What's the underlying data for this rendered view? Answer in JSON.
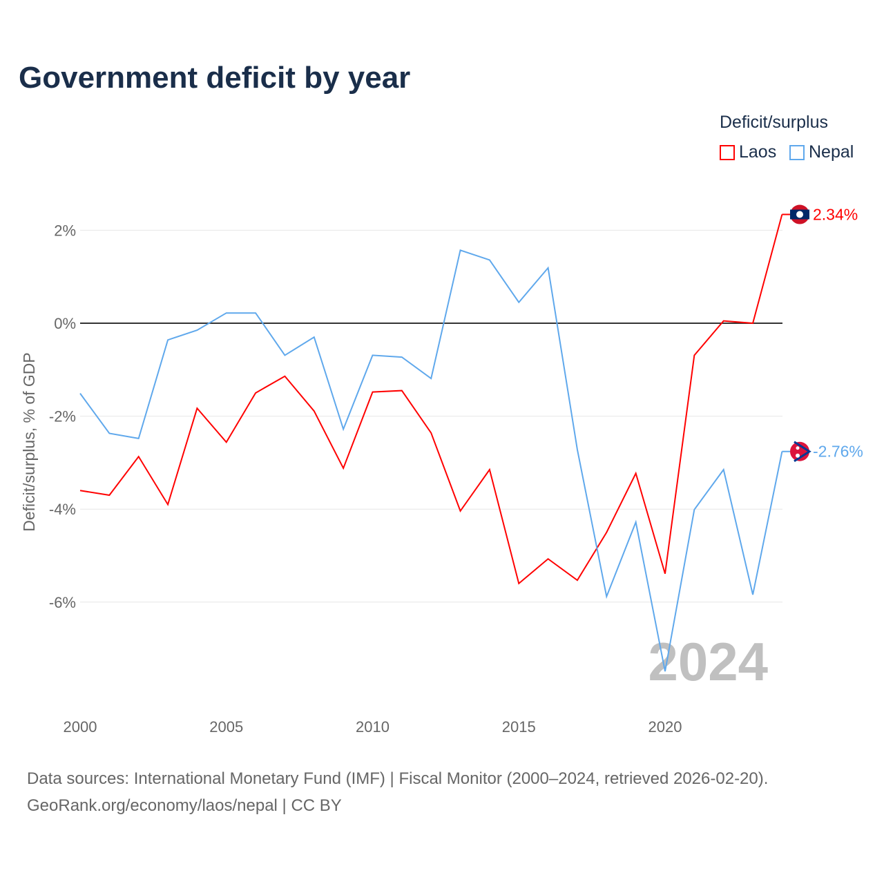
{
  "title": "Government deficit by year",
  "legend": {
    "title": "Deficit/surplus",
    "items": [
      {
        "label": "Laos",
        "color": "#ff0000"
      },
      {
        "label": "Nepal",
        "color": "#5fa8ec"
      }
    ]
  },
  "source": {
    "line1": "Data sources: International Monetary Fund (IMF) | Fiscal Monitor (2000–2024, retrieved 2026-02-20).",
    "line2": "GeoRank.org/economy/laos/nepal | CC BY"
  },
  "chart_data": {
    "type": "line",
    "title": "Government deficit by year",
    "ylabel": "Deficit/surplus, % of GDP",
    "xlabel": "",
    "x": [
      2000,
      2001,
      2002,
      2003,
      2004,
      2005,
      2006,
      2007,
      2008,
      2009,
      2010,
      2011,
      2012,
      2013,
      2014,
      2015,
      2016,
      2017,
      2018,
      2019,
      2020,
      2021,
      2022,
      2023,
      2024
    ],
    "xticks": [
      2000,
      2005,
      2010,
      2015,
      2020
    ],
    "xtick_labels": [
      "2000",
      "2005",
      "2010",
      "2015",
      "2020"
    ],
    "yticks": [
      2,
      0,
      -2,
      -4,
      -6
    ],
    "ytick_labels": [
      "2%",
      "0%",
      "-2%",
      "-4%",
      "-6%"
    ],
    "ylim": [
      -8.1,
      3
    ],
    "watermark_year": "2024",
    "series": [
      {
        "name": "Laos",
        "color": "#ff0000",
        "end_label": "2.34%",
        "values": [
          -3.6,
          -3.7,
          -2.87,
          -3.9,
          -1.83,
          -2.56,
          -1.5,
          -1.14,
          -1.89,
          -3.12,
          -1.48,
          -1.45,
          -2.36,
          -4.04,
          -3.15,
          -5.6,
          -5.07,
          -5.53,
          -4.5,
          -3.23,
          -5.39,
          -0.69,
          0.05,
          0.0,
          2.34
        ]
      },
      {
        "name": "Nepal",
        "color": "#5fa8ec",
        "end_label": "-2.76%",
        "values": [
          -1.51,
          -2.37,
          -2.48,
          -0.36,
          -0.15,
          0.22,
          0.22,
          -0.69,
          -0.3,
          -2.28,
          -0.69,
          -0.73,
          -1.19,
          1.57,
          1.36,
          0.45,
          1.19,
          -2.72,
          -5.88,
          -4.28,
          -7.49,
          -4.01,
          -3.15,
          -5.84,
          -2.76
        ]
      }
    ]
  }
}
